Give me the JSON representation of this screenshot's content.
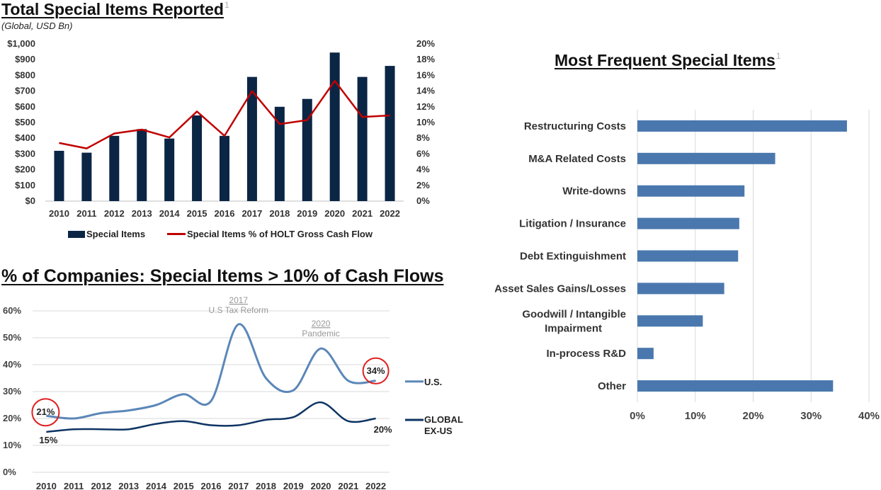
{
  "top_chart": {
    "title": "Total Special Items Reported",
    "title_sup": "1",
    "subtitle": "(Global, USD Bn)",
    "legend_bar": "Special Items",
    "legend_line": "Special Items % of HOLT Gross Cash Flow"
  },
  "bottom_chart": {
    "title": "% of Companies: Special Items > 10% of Cash Flows",
    "annotation_2017_year": "2017",
    "annotation_2017_text": "U.S Tax Reform",
    "annotation_2020_year": "2020",
    "annotation_2020_text": "Pandemic",
    "label_us_start": "21%",
    "label_us_end": "34%",
    "label_global_start": "15%",
    "label_global_end": "20%",
    "legend_us": "U.S.",
    "legend_global_line1": "GLOBAL",
    "legend_global_line2": "EX-US"
  },
  "right_chart": {
    "title": "Most Frequent Special Items",
    "title_sup": "1"
  },
  "colors": {
    "navy": "#0b2545",
    "red": "#c00000",
    "us_blue": "#5b87b8",
    "global_navy": "#0e3463",
    "bar_blue": "#4a78ae",
    "circle_red": "#e02020",
    "grid": "#d9d9d9"
  },
  "chart_data": [
    {
      "type": "bar",
      "title": "Total Special Items Reported",
      "subtitle": "(Global, USD Bn)",
      "categories": [
        "2010",
        "2011",
        "2012",
        "2013",
        "2014",
        "2015",
        "2016",
        "2017",
        "2018",
        "2019",
        "2020",
        "2021",
        "2022"
      ],
      "series": [
        {
          "name": "Special Items",
          "type": "bar",
          "axis": "left",
          "values": [
            320,
            308,
            415,
            458,
            398,
            545,
            415,
            790,
            600,
            650,
            945,
            790,
            860
          ]
        },
        {
          "name": "Special Items % of HOLT Gross Cash Flow",
          "type": "line",
          "axis": "right",
          "values": [
            7.4,
            6.7,
            8.6,
            9.1,
            8.1,
            11.4,
            8.3,
            14.0,
            9.8,
            10.3,
            15.3,
            10.7,
            10.9
          ]
        }
      ],
      "ylim": [
        0,
        1000
      ],
      "yticks": [
        "$0",
        "$100",
        "$200",
        "$300",
        "$400",
        "$500",
        "$600",
        "$700",
        "$800",
        "$900",
        "$1,000"
      ],
      "y2lim": [
        0,
        20
      ],
      "y2ticks": [
        "0%",
        "2%",
        "4%",
        "6%",
        "8%",
        "10%",
        "12%",
        "14%",
        "16%",
        "18%",
        "20%"
      ],
      "grid": false,
      "legend": "bottom"
    },
    {
      "type": "line",
      "title": "% of Companies: Special Items > 10% of Cash Flows",
      "categories": [
        "2010",
        "2011",
        "2012",
        "2013",
        "2014",
        "2015",
        "2016",
        "2017",
        "2018",
        "2019",
        "2020",
        "2021",
        "2022"
      ],
      "series": [
        {
          "name": "U.S.",
          "values": [
            21,
            20,
            22,
            23,
            25,
            29,
            26.5,
            55,
            35,
            30.5,
            46,
            34,
            34
          ]
        },
        {
          "name": "GLOBAL EX-US",
          "values": [
            15,
            16,
            16,
            16,
            18,
            19,
            17.5,
            17.5,
            19.5,
            20.5,
            26,
            19,
            20
          ]
        }
      ],
      "ylim": [
        0,
        60
      ],
      "yticks": [
        "0%",
        "10%",
        "20%",
        "30%",
        "40%",
        "50%",
        "60%"
      ],
      "grid": true,
      "legend": "right"
    },
    {
      "type": "bar",
      "orientation": "horizontal",
      "title": "Most Frequent Special Items",
      "categories": [
        "Restructuring Costs",
        "M&A Related Costs",
        "Write-downs",
        "Litigation / Insurance",
        "Debt Extinguishment",
        "Asset Sales Gains/Losses",
        "Goodwill / Intangible Impairment",
        "In-process R&D",
        "Other"
      ],
      "values": [
        36.2,
        23.8,
        18.5,
        17.6,
        17.4,
        15.0,
        11.3,
        2.8,
        33.8
      ],
      "xlim": [
        0,
        40
      ],
      "xticks": [
        "0%",
        "10%",
        "20%",
        "30%",
        "40%"
      ],
      "grid": true
    }
  ]
}
